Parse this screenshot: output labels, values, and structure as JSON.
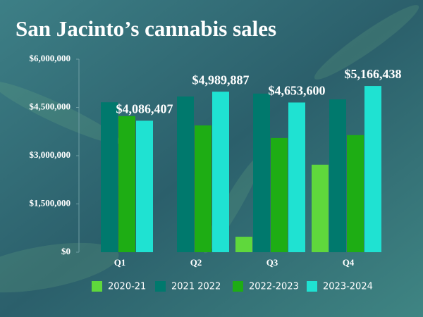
{
  "chart_data": {
    "type": "bar",
    "title": "San Jacinto’s cannabis sales",
    "categories": [
      "Q1",
      "Q2",
      "Q3",
      "Q4"
    ],
    "series": [
      {
        "name": "2020-21",
        "color": "#5fd83c",
        "values": [
          null,
          null,
          480000,
          2720000
        ]
      },
      {
        "name": "2021 2022",
        "color": "#00796d",
        "values": [
          4660000,
          4840000,
          4930000,
          4750000
        ]
      },
      {
        "name": "2022-2023",
        "color": "#1ead14",
        "values": [
          4230000,
          3940000,
          3550000,
          3640000
        ]
      },
      {
        "name": "2023-2024",
        "color": "#1fe2d2",
        "values": [
          4086407,
          4989887,
          4653600,
          5166438
        ],
        "value_labels": [
          "$4,086,407",
          "$4,989,887",
          "$4,653,600",
          "$5,166,438"
        ]
      }
    ],
    "ylim": [
      0,
      6000000
    ],
    "yticks": [
      {
        "value": 0,
        "label": "$0"
      },
      {
        "value": 1500000,
        "label": "$1,500,000"
      },
      {
        "value": 3000000,
        "label": "$3,000,000"
      },
      {
        "value": 4500000,
        "label": "$4,500,000"
      },
      {
        "value": 6000000,
        "label": "$6,000,000"
      }
    ],
    "grid": false
  }
}
